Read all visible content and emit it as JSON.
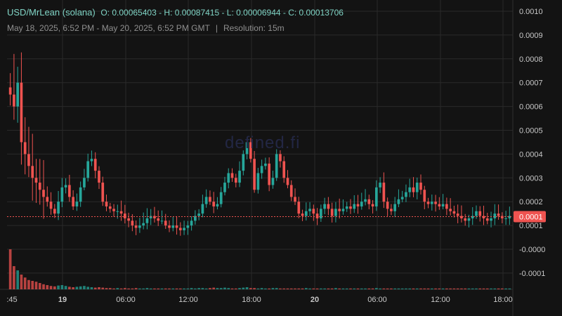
{
  "header": {
    "symbol": "USD/MrLean (solana)",
    "ohlc": "O: 0.00065403 - H: 0.00087415 - L: 0.00006944 - C: 0.00013706",
    "date_range": "May 18, 2025, 6:52 PM - May 20, 2025, 6:52 PM GMT",
    "separator": "|",
    "resolution": "Resolution: 15m"
  },
  "watermark": "defined.fi",
  "price_label": "0.0001",
  "colors": {
    "up": "#26a69a",
    "down": "#ef5350",
    "bg": "#131313",
    "grid": "#2a2a2a",
    "price_line": "#ef5350"
  },
  "chart_data": {
    "type": "candlestick",
    "y_ticks": [
      "0.0010",
      "0.0009",
      "0.0008",
      "0.0007",
      "0.0006",
      "0.0005",
      "0.0004",
      "0.0003",
      "0.0002",
      "0.0001",
      "-0.0000",
      "-0.0001"
    ],
    "ylim": [
      -0.00013,
      0.00103
    ],
    "x_ticks": [
      ":45",
      "19",
      "06:00",
      "12:00",
      "18:00",
      "20",
      "06:00",
      "12:00",
      "18:00"
    ],
    "bold_x_ticks": [
      "19",
      "20"
    ],
    "current_price": 0.00013706,
    "closes": [
      0.00065,
      0.0006,
      0.0007,
      0.00045,
      0.0004,
      0.00035,
      0.0003,
      0.00028,
      0.00025,
      0.00022,
      0.0002,
      0.00017,
      0.00015,
      0.0002,
      0.00026,
      0.00027,
      0.00022,
      0.00018,
      0.0002,
      0.00026,
      0.0003,
      0.00037,
      0.00038,
      0.00033,
      0.00028,
      0.0002,
      0.00018,
      0.00017,
      0.00016,
      0.00016,
      0.00015,
      0.00013,
      0.00012,
      0.0001,
      9e-05,
      0.0001,
      0.00011,
      0.00013,
      0.00014,
      0.00013,
      0.00012,
      0.00012,
      0.0001,
      9e-05,
      0.0001,
      9e-05,
      8e-05,
      9e-05,
      0.0001,
      0.00012,
      0.00014,
      0.00015,
      0.00019,
      0.00022,
      0.0002,
      0.00018,
      0.00019,
      0.00024,
      0.00028,
      0.00032,
      0.0003,
      0.00028,
      0.00033,
      0.0004,
      0.00045,
      0.00038,
      0.00025,
      0.00032,
      0.00035,
      0.00036,
      0.00027,
      0.0003,
      0.0004,
      0.00037,
      0.0003,
      0.00027,
      0.00022,
      0.0002,
      0.00015,
      0.00014,
      0.00016,
      0.00017,
      0.00015,
      0.00013,
      0.00017,
      0.00019,
      0.00017,
      0.00014,
      0.00017,
      0.00016,
      0.00017,
      0.00018,
      0.00017,
      0.00019,
      0.00018,
      0.0002,
      0.00021,
      0.00019,
      0.00018,
      0.00026,
      0.00028,
      0.0002,
      0.00017,
      0.00016,
      0.00019,
      0.00021,
      0.00022,
      0.00024,
      0.00026,
      0.00024,
      0.00028,
      0.00025,
      0.0002,
      0.00019,
      0.0002,
      0.00019,
      0.00018,
      0.00019,
      0.00017,
      0.00016,
      0.00015,
      0.00014,
      0.00013,
      0.00012,
      0.00013,
      0.00014,
      0.00016,
      0.00014,
      0.00013,
      0.00012,
      0.00013,
      0.00015,
      0.00014,
      0.00013,
      0.00013,
      0.00014
    ],
    "volumes": [
      0.95,
      0.55,
      0.45,
      0.35,
      0.28,
      0.22,
      0.2,
      0.18,
      0.15,
      0.12,
      0.1,
      0.08,
      0.07,
      0.09,
      0.1,
      0.08,
      0.06,
      0.05,
      0.06,
      0.07,
      0.08,
      0.06,
      0.05,
      0.04,
      0.05,
      0.04,
      0.03,
      0.03,
      0.02,
      0.03,
      0.02,
      0.03,
      0.02,
      0.02,
      0.03,
      0.02,
      0.02,
      0.03,
      0.02,
      0.02,
      0.02,
      0.02,
      0.02,
      0.02,
      0.02,
      0.02,
      0.02,
      0.02,
      0.02,
      0.03,
      0.02,
      0.03,
      0.03,
      0.02,
      0.03,
      0.04,
      0.03,
      0.03,
      0.04,
      0.03,
      0.02,
      0.02,
      0.03,
      0.04,
      0.05,
      0.03,
      0.03,
      0.02,
      0.03,
      0.02,
      0.02,
      0.03,
      0.03,
      0.02,
      0.02,
      0.02,
      0.02,
      0.02,
      0.02,
      0.02,
      0.03,
      0.02,
      0.02,
      0.02,
      0.02,
      0.02,
      0.02,
      0.02,
      0.03,
      0.02,
      0.02,
      0.02,
      0.02,
      0.02,
      0.02,
      0.02,
      0.02,
      0.02,
      0.02,
      0.03,
      0.02,
      0.02,
      0.02,
      0.02,
      0.02,
      0.02,
      0.02,
      0.02,
      0.02,
      0.02,
      0.02,
      0.02,
      0.02,
      0.02,
      0.02,
      0.02,
      0.02,
      0.02,
      0.02,
      0.02,
      0.02,
      0.02,
      0.02,
      0.02,
      0.02,
      0.02,
      0.02,
      0.02,
      0.02,
      0.02,
      0.02,
      0.02,
      0.02,
      0.02,
      0.02,
      0.02,
      0.02,
      0.02
    ]
  }
}
